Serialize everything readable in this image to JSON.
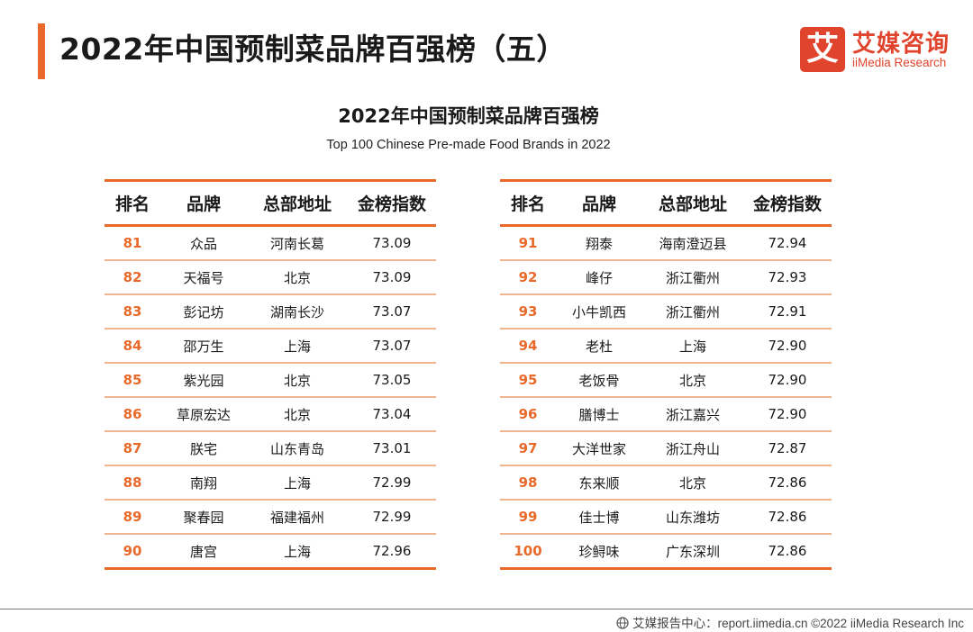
{
  "header": {
    "title": "2022年中国预制菜品牌百强榜（五）",
    "logo_mark": "艾",
    "logo_cn": "艾媒咨询",
    "logo_en": "iiMedia Research"
  },
  "chart": {
    "title_cn": "2022年中国预制菜品牌百强榜",
    "title_en": "Top 100 Chinese Pre-made Food Brands in 2022"
  },
  "columns": [
    "排名",
    "品牌",
    "总部地址",
    "金榜指数"
  ],
  "left_rows": [
    {
      "rank": "81",
      "brand": "众品",
      "hq": "河南长葛",
      "index": "73.09"
    },
    {
      "rank": "82",
      "brand": "天福号",
      "hq": "北京",
      "index": "73.09"
    },
    {
      "rank": "83",
      "brand": "彭记坊",
      "hq": "湖南长沙",
      "index": "73.07"
    },
    {
      "rank": "84",
      "brand": "邵万生",
      "hq": "上海",
      "index": "73.07"
    },
    {
      "rank": "85",
      "brand": "紫光园",
      "hq": "北京",
      "index": "73.05"
    },
    {
      "rank": "86",
      "brand": "草原宏达",
      "hq": "北京",
      "index": "73.04"
    },
    {
      "rank": "87",
      "brand": "朕宅",
      "hq": "山东青岛",
      "index": "73.01"
    },
    {
      "rank": "88",
      "brand": "南翔",
      "hq": "上海",
      "index": "72.99"
    },
    {
      "rank": "89",
      "brand": "聚春园",
      "hq": "福建福州",
      "index": "72.99"
    },
    {
      "rank": "90",
      "brand": "唐宫",
      "hq": "上海",
      "index": "72.96"
    }
  ],
  "right_rows": [
    {
      "rank": "91",
      "brand": "翔泰",
      "hq": "海南澄迈县",
      "index": "72.94"
    },
    {
      "rank": "92",
      "brand": "峰仔",
      "hq": "浙江衢州",
      "index": "72.93"
    },
    {
      "rank": "93",
      "brand": "小牛凯西",
      "hq": "浙江衢州",
      "index": "72.91"
    },
    {
      "rank": "94",
      "brand": "老杜",
      "hq": "上海",
      "index": "72.90"
    },
    {
      "rank": "95",
      "brand": "老饭骨",
      "hq": "北京",
      "index": "72.90"
    },
    {
      "rank": "96",
      "brand": "膳博士",
      "hq": "浙江嘉兴",
      "index": "72.90"
    },
    {
      "rank": "97",
      "brand": "大洋世家",
      "hq": "浙江舟山",
      "index": "72.87"
    },
    {
      "rank": "98",
      "brand": "东来顺",
      "hq": "北京",
      "index": "72.86"
    },
    {
      "rank": "99",
      "brand": "佳士博",
      "hq": "山东潍坊",
      "index": "72.86"
    },
    {
      "rank": "100",
      "brand": "珍鲟味",
      "hq": "广东深圳",
      "index": "72.86"
    }
  ],
  "footer": {
    "text": "艾媒报告中心：report.iimedia.cn  ©2022  iiMedia Research  Inc"
  },
  "colors": {
    "accent": "#e8692a",
    "brand_red": "#e0442c",
    "row_divider": "#f0b48e"
  }
}
